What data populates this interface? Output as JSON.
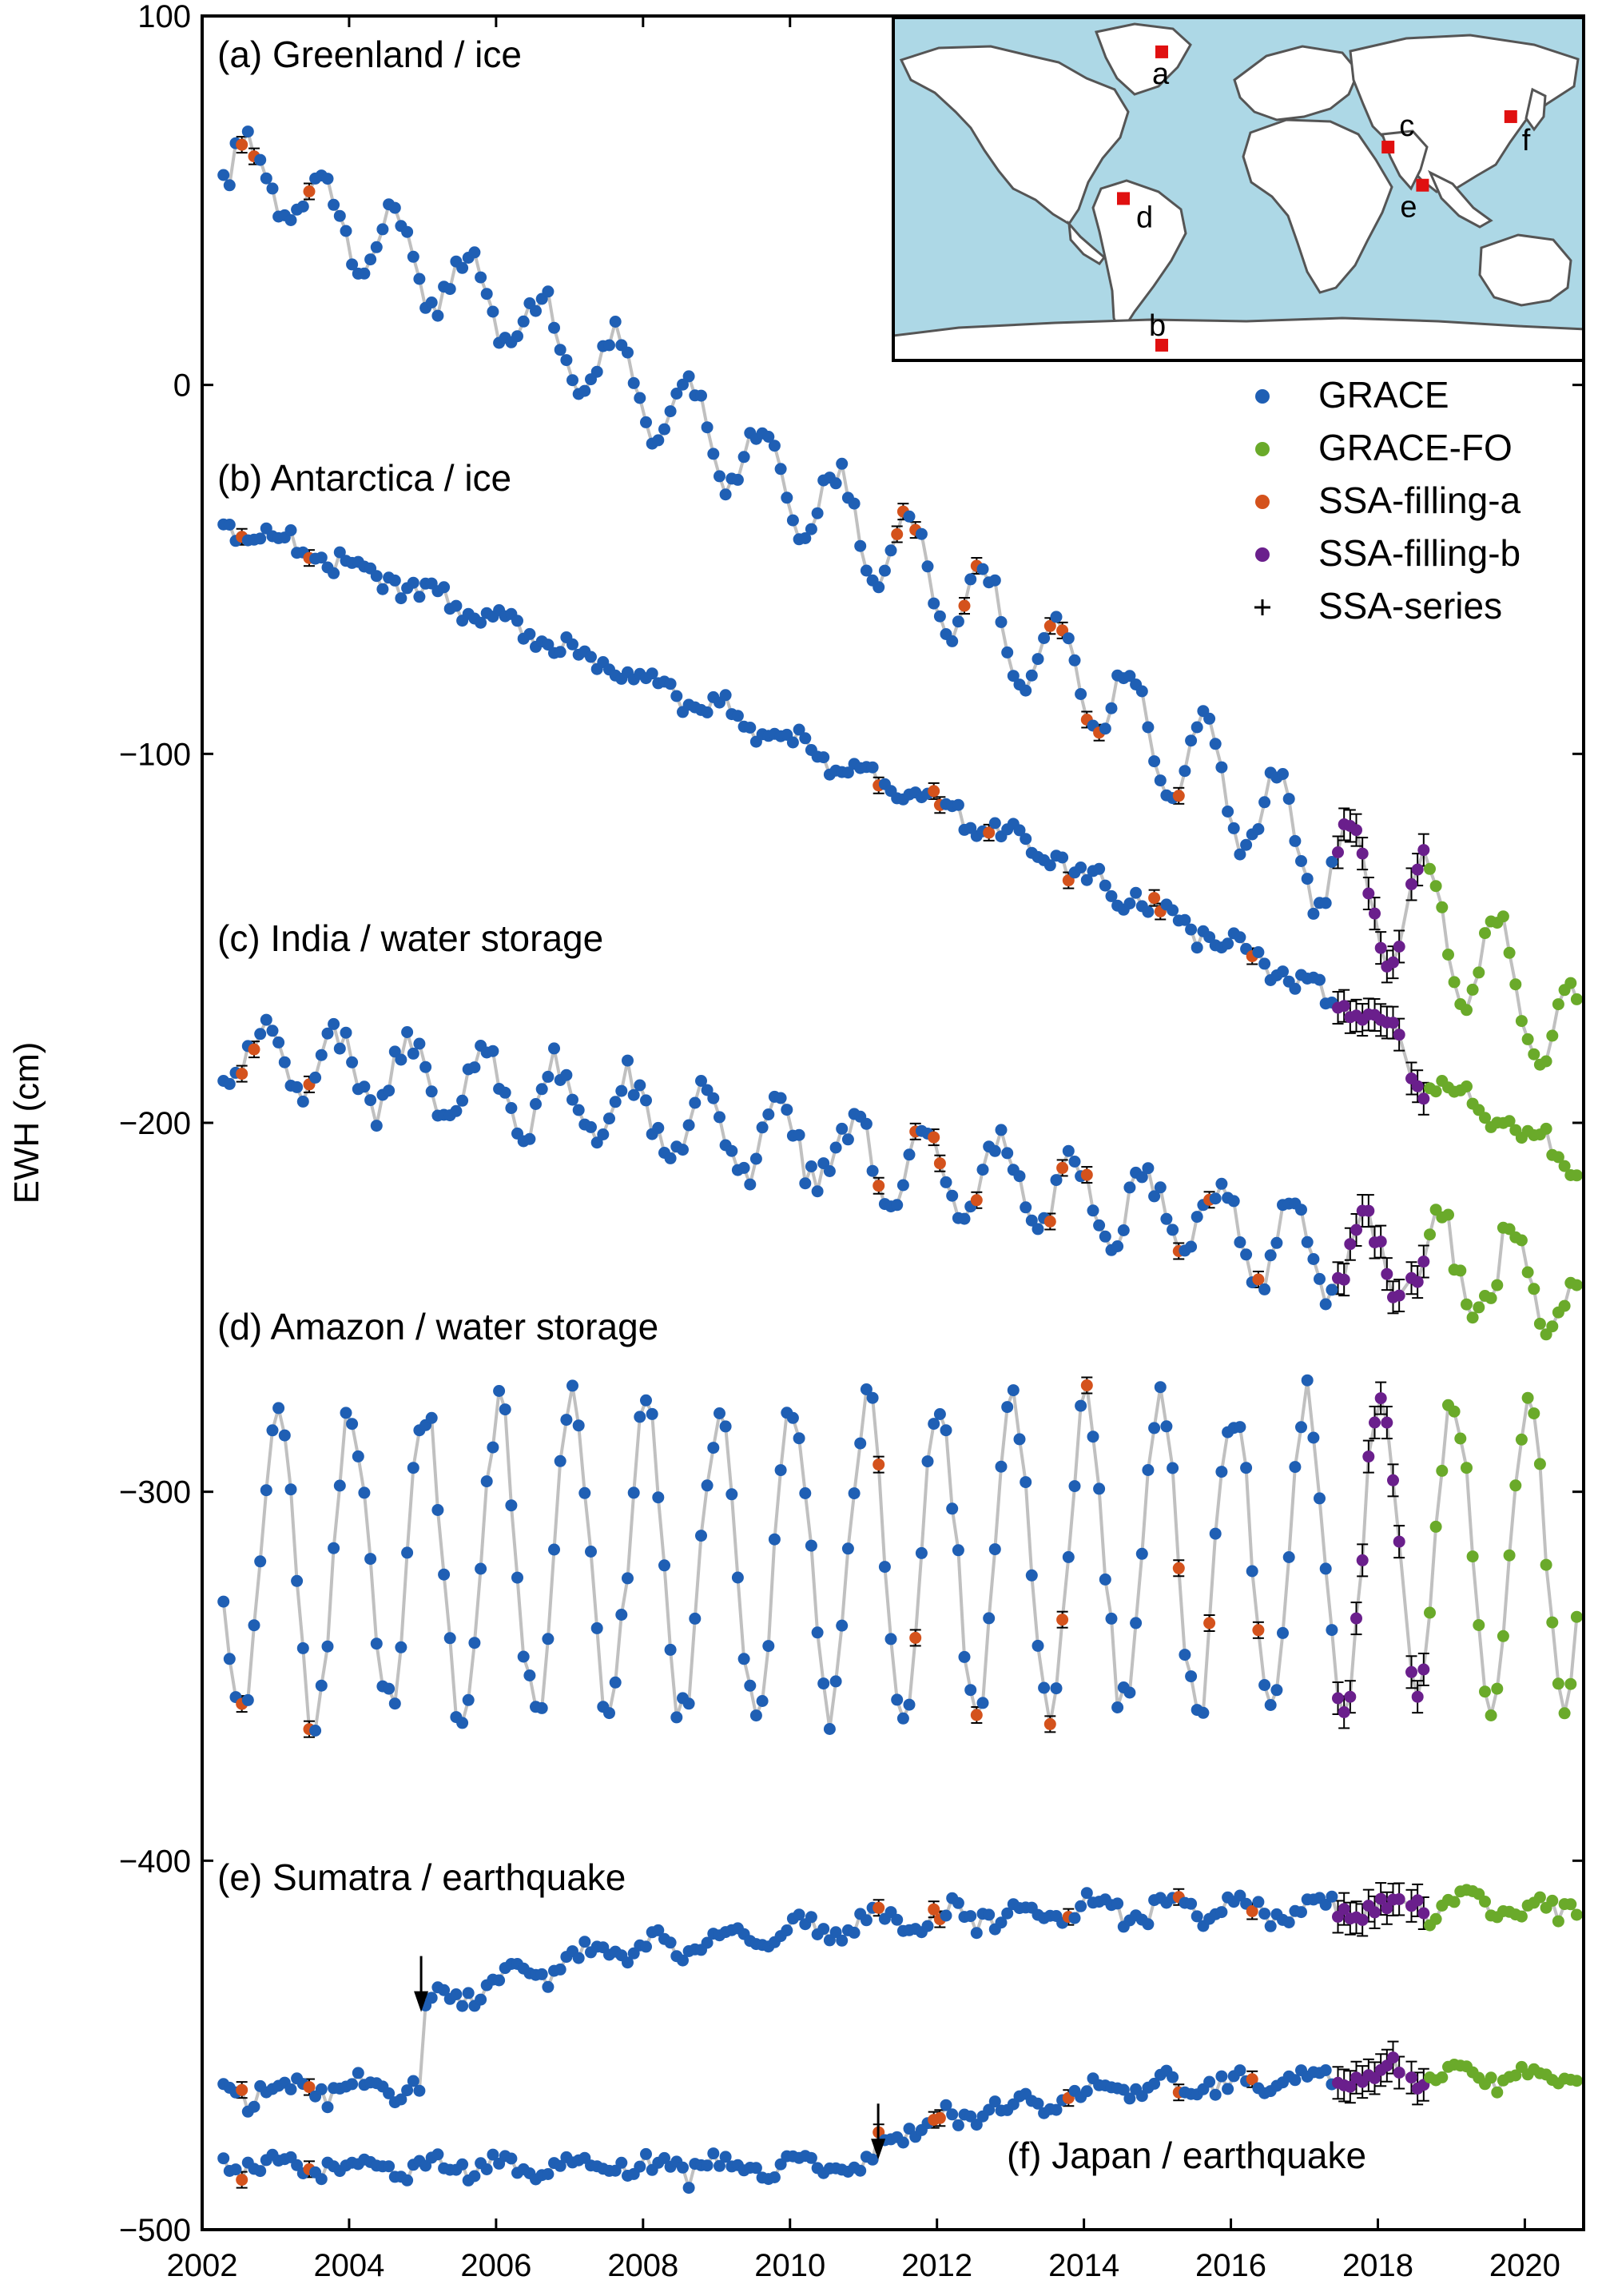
{
  "chart_data": {
    "type": "scatter",
    "ylabel": "EWH (cm)",
    "xlim": [
      2002,
      2020.8
    ],
    "ylim": [
      -500,
      100
    ],
    "x_ticks": [
      2002,
      2004,
      2006,
      2008,
      2010,
      2012,
      2014,
      2016,
      2018,
      2020
    ],
    "x_tick_labels": [
      "2002",
      "2004",
      "2006",
      "2008",
      "2010",
      "2012",
      "2014",
      "2016",
      "2018",
      "2020"
    ],
    "y_ticks": [
      100,
      0,
      -100,
      -200,
      -300,
      -400,
      -500
    ],
    "y_tick_labels": [
      "100",
      "0",
      "−100",
      "−200",
      "−300",
      "−400",
      "−500"
    ],
    "legend": {
      "placement": "top-right",
      "entries": [
        {
          "key": "grace",
          "label": "GRACE",
          "marker": "dot",
          "color": "#1f5fb4"
        },
        {
          "key": "gracefo",
          "label": "GRACE-FO",
          "marker": "dot",
          "color": "#6aaa2a"
        },
        {
          "key": "fillA",
          "label": "SSA-filling-a",
          "marker": "dot",
          "color": "#d4521c"
        },
        {
          "key": "fillB",
          "label": "SSA-filling-b",
          "marker": "dot",
          "color": "#6a1f8c"
        },
        {
          "key": "ssa",
          "label": "SSA-series",
          "marker": "plus",
          "color": "#000000"
        }
      ]
    },
    "colors": {
      "grace": "#1f5fb4",
      "gracefo": "#6aaa2a",
      "fillA": "#d4521c",
      "fillB": "#6a1f8c",
      "line": "#c0c0c0",
      "ocean": "#add8e6",
      "land": "#ffffff",
      "site": "#e01010"
    },
    "inset_map": {
      "sites": [
        {
          "label": "a",
          "lon": -40,
          "lat": 72
        },
        {
          "label": "b",
          "lon": -40,
          "lat": -82
        },
        {
          "label": "c",
          "lon": 78,
          "lat": 22
        },
        {
          "label": "d",
          "lon": -60,
          "lat": -5
        },
        {
          "label": "e",
          "lon": 96,
          "lat": 2
        },
        {
          "label": "f",
          "lon": 142,
          "lat": 38
        }
      ]
    },
    "events": [
      {
        "x": 2004.98,
        "y": -441,
        "type": "arrow-down"
      },
      {
        "x": 2011.2,
        "y": -481,
        "type": "arrow-down"
      }
    ],
    "series": [
      {
        "label": "(a) Greenland / ice",
        "model": {
          "start": 61,
          "trend": -10.0,
          "accel": -0.18,
          "amp": 9,
          "amp_growth": 0.04,
          "phase": 3.8,
          "noise": 2.5,
          "fo_offset": 6
        },
        "fillA_x": [
          2002.54,
          2002.7,
          2003.45,
          2011.5,
          2011.67,
          2012.4,
          2012.55,
          2013.55,
          2013.7,
          2014.05,
          2014.2,
          2015.3
        ],
        "fillB_x": [
          2017.45,
          2017.55,
          2017.65,
          2017.75,
          2017.85,
          2017.95,
          2018.05,
          2018.15,
          2018.25,
          2018.5,
          2018.6
        ]
      },
      {
        "label": "(b) Antarctica / ice",
        "model": {
          "start": -37,
          "trend": -6.8,
          "accel": -0.12,
          "amp": 2.2,
          "amp_growth": 0.0,
          "phase": 1.0,
          "noise": 2.2,
          "fo_offset": -8
        },
        "fillA_x": [
          2002.54,
          2003.45,
          2011.2,
          2012.0,
          2012.7,
          2013.8,
          2015.0,
          2016.3
        ],
        "fillB_x": [
          2017.45,
          2017.55,
          2017.65,
          2017.75,
          2017.85,
          2017.95,
          2018.05,
          2018.15,
          2018.25,
          2018.5,
          2018.6
        ]
      },
      {
        "label": "(c) India / water storage",
        "model": {
          "start": -180,
          "trend": -2.9,
          "accel": -0.05,
          "amp": 9,
          "amp_growth": 0.02,
          "phase": 2.5,
          "noise": 3.5,
          "fo_offset": 4
        },
        "fillA_x": [
          2002.54,
          2002.7,
          2003.45,
          2011.2,
          2011.67,
          2012.0,
          2012.55,
          2013.55,
          2013.7,
          2014.05,
          2015.3,
          2015.7,
          2016.4
        ],
        "fillB_x": [
          2017.45,
          2017.55,
          2017.65,
          2017.75,
          2017.85,
          2017.95,
          2018.05,
          2018.15,
          2018.25,
          2018.5,
          2018.6
        ]
      },
      {
        "label": "(d) Amazon / water storage",
        "model": {
          "start": -320,
          "trend": 0.2,
          "accel": 0.0,
          "amp": 42,
          "amp_growth": 0.0,
          "phase": 1.35,
          "noise": 5,
          "fo_offset": 0
        },
        "fillA_x": [
          2002.54,
          2003.45,
          2011.2,
          2011.67,
          2012.55,
          2013.55,
          2013.7,
          2014.05,
          2015.3,
          2015.7,
          2016.4
        ],
        "fillB_x": [
          2017.45,
          2017.55,
          2017.65,
          2017.75,
          2017.85,
          2017.95,
          2018.05,
          2018.15,
          2018.25,
          2018.5,
          2018.6
        ]
      },
      {
        "label": "(e) Sumatra / earthquake",
        "model": {
          "start": -462,
          "trend": 0.0,
          "accel": 0.0,
          "amp": 2.5,
          "amp_growth": 0.0,
          "phase": 0.5,
          "noise": 2.2,
          "fo_offset": 0
        },
        "steps": [
          {
            "t": 2004.98,
            "size": 22
          },
          {
            "t": 2005.0,
            "decay": 28,
            "tau": 3.5
          }
        ],
        "fillA_x": [
          2002.54,
          2003.45,
          2011.2,
          2012.0,
          2013.8,
          2015.3,
          2016.3
        ],
        "fillB_x": [
          2017.45,
          2017.55,
          2017.65,
          2017.75,
          2017.85,
          2017.95,
          2018.05,
          2018.15,
          2018.25,
          2018.5,
          2018.6
        ]
      },
      {
        "label": "(f) Japan / earthquake",
        "model": {
          "start": -483,
          "trend": 0.0,
          "accel": 0.0,
          "amp": 2.0,
          "amp_growth": 0.0,
          "phase": 0.8,
          "noise": 2.0,
          "fo_offset": 0
        },
        "steps": [
          {
            "t": 2011.2,
            "size": 6
          },
          {
            "t": 2011.2,
            "decay": 20,
            "tau": 2.5
          }
        ],
        "fillA_x": [
          2002.54,
          2003.45,
          2011.2,
          2012.0,
          2013.8,
          2015.3,
          2016.3
        ],
        "fillB_x": [
          2017.45,
          2017.55,
          2017.65,
          2017.75,
          2017.85,
          2017.95,
          2018.05,
          2018.15,
          2018.25,
          2018.5,
          2018.6
        ]
      }
    ]
  }
}
